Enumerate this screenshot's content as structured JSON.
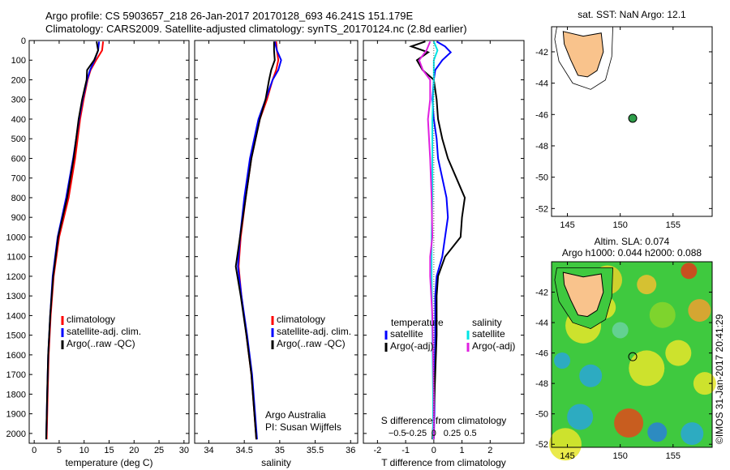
{
  "header": {
    "title_line1": "Argo profile: CS 5903657_218 26-Jan-2017 20170128_693 46.241S 151.179E",
    "title_line2": "Climatology: CARS2009. Satellite-adjusted climatology: synTS_20170124.nc (2.8d earlier)"
  },
  "side_stamp": "©IMOS 31-Jan-2017 20:41:29",
  "colors": {
    "climatology": "#ff0000",
    "satellite": "#0000ff",
    "argo": "#000000",
    "salinity_satellite": "#00e5e5",
    "salinity_argo": "#e020e0",
    "land": "#f9c38c",
    "float": "#2e9e4a"
  },
  "chart_data": [
    {
      "type": "line",
      "id": "temperature",
      "xlabel": "temperature (deg C)",
      "xlim": [
        -1,
        31
      ],
      "ylim": [
        2050,
        0
      ],
      "xticks": [
        0,
        5,
        10,
        15,
        20,
        25,
        30
      ],
      "yticks": [
        0,
        100,
        200,
        300,
        400,
        500,
        600,
        700,
        800,
        900,
        1000,
        1100,
        1200,
        1300,
        1400,
        1500,
        1600,
        1700,
        1800,
        1900,
        2000
      ],
      "legend": [
        "climatology",
        "satellite-adj. clim.",
        "Argo(..raw -QC)"
      ],
      "series": [
        {
          "name": "climatology",
          "color": "#ff0000",
          "depth": [
            5,
            50,
            100,
            150,
            200,
            300,
            400,
            600,
            800,
            1000,
            1200,
            1400,
            1600,
            1800,
            2030
          ],
          "values": [
            13.8,
            13.6,
            12.4,
            11.3,
            10.7,
            9.9,
            9.2,
            8.2,
            6.9,
            5.0,
            3.9,
            3.3,
            2.9,
            2.7,
            2.5
          ]
        },
        {
          "name": "satellite-adj. clim.",
          "color": "#0000ff",
          "depth": [
            5,
            50,
            100,
            150,
            200,
            300,
            400,
            600,
            800,
            1000,
            1200,
            1400,
            1600,
            1800,
            2030
          ],
          "values": [
            13.0,
            12.8,
            12.1,
            11.2,
            10.6,
            9.7,
            9.0,
            7.8,
            6.4,
            4.7,
            3.7,
            3.2,
            2.8,
            2.6,
            2.4
          ]
        },
        {
          "name": "Argo(..raw -QC)",
          "color": "#000000",
          "depth": [
            5,
            20,
            50,
            100,
            150,
            200,
            300,
            400,
            600,
            800,
            1000,
            1200,
            1400,
            1600,
            1800,
            2030
          ],
          "values": [
            12.5,
            12.6,
            12.8,
            12.0,
            10.6,
            10.5,
            9.6,
            8.9,
            7.9,
            6.6,
            4.8,
            3.8,
            3.2,
            2.8,
            2.6,
            2.4
          ]
        }
      ]
    },
    {
      "type": "line",
      "id": "salinity",
      "xlabel": "salinity",
      "xlim": [
        33.8,
        36.1
      ],
      "ylim": [
        2050,
        0
      ],
      "xticks": [
        34,
        34.5,
        35,
        35.5,
        36
      ],
      "legend": [
        "climatology",
        "satellite-adj. clim.",
        "Argo(..raw -QC)"
      ],
      "annotations": [
        "Argo Australia",
        "PI: Susan Wijffels"
      ],
      "series": [
        {
          "name": "climatology",
          "color": "#ff0000",
          "depth": [
            5,
            50,
            100,
            150,
            200,
            300,
            400,
            600,
            800,
            1000,
            1150,
            1300,
            1500,
            1700,
            2030
          ],
          "values": [
            34.95,
            34.96,
            34.98,
            34.95,
            34.9,
            34.82,
            34.72,
            34.6,
            34.52,
            34.45,
            34.42,
            34.46,
            34.53,
            34.6,
            34.67
          ]
        },
        {
          "name": "satellite-adj. clim.",
          "color": "#0000ff",
          "depth": [
            5,
            50,
            100,
            150,
            200,
            300,
            400,
            600,
            800,
            1000,
            1150,
            1300,
            1500,
            1700,
            2030
          ],
          "values": [
            34.93,
            34.96,
            35.02,
            34.98,
            34.9,
            34.8,
            34.7,
            34.58,
            34.5,
            34.44,
            34.41,
            34.46,
            34.54,
            34.61,
            34.68
          ]
        },
        {
          "name": "Argo(..raw -QC)",
          "color": "#000000",
          "depth": [
            5,
            50,
            100,
            150,
            200,
            300,
            400,
            600,
            800,
            1000,
            1150,
            1300,
            1500,
            1700,
            2030
          ],
          "values": [
            34.92,
            34.92,
            34.93,
            34.88,
            34.85,
            34.8,
            34.72,
            34.6,
            34.52,
            34.44,
            34.38,
            34.45,
            34.53,
            34.6,
            34.67
          ]
        }
      ]
    },
    {
      "type": "line",
      "id": "difference",
      "xlabel": "T difference from climatology",
      "xlabel_top": "S difference from climatology",
      "xlim": [
        -2.5,
        3.2
      ],
      "ylim": [
        2050,
        0
      ],
      "xticks": [
        -2,
        -1,
        0,
        1,
        2
      ],
      "xticks_top": [
        -0.5,
        -0.25,
        0,
        0.25,
        0.5
      ],
      "xticks_top_labels": [
        "−0.5",
        "−0.25",
        "0",
        "0.25",
        "0.5"
      ],
      "legend_titles": [
        "temperature",
        "salinity"
      ],
      "legend": [
        "satellite",
        "Argo(-adj)",
        "satellite",
        "Argo(-adj)"
      ],
      "series": [
        {
          "name": "temperature satellite",
          "color": "#0000ff",
          "depth": [
            5,
            30,
            60,
            100,
            150,
            200,
            300,
            400,
            500,
            600,
            700,
            800,
            900,
            1000,
            1100,
            1200,
            1300,
            1500,
            1700,
            1900,
            2030
          ],
          "values": [
            0.1,
            0.4,
            0.6,
            0.3,
            0.05,
            0.0,
            -0.05,
            0.0,
            0.1,
            0.15,
            0.3,
            0.45,
            0.5,
            0.4,
            0.3,
            0.1,
            0.05,
            0.05,
            0.03,
            0.02,
            0.0
          ]
        },
        {
          "name": "temperature Argo(-adj)",
          "color": "#000000",
          "depth": [
            5,
            30,
            60,
            100,
            150,
            200,
            300,
            400,
            500,
            600,
            700,
            800,
            900,
            1000,
            1100,
            1200,
            1300,
            1500,
            1700,
            1900,
            2030
          ],
          "values": [
            -0.3,
            -0.8,
            -0.2,
            -0.6,
            -0.4,
            0.0,
            0.1,
            0.15,
            0.3,
            0.5,
            0.8,
            1.1,
            1.0,
            0.95,
            0.4,
            0.15,
            0.1,
            0.1,
            0.05,
            0.0,
            -0.05
          ]
        },
        {
          "name": "salinity satellite",
          "color": "#00e5e5",
          "depth": [
            5,
            50,
            100,
            200,
            400,
            600,
            800,
            1000,
            1200,
            1500,
            1800,
            2030
          ],
          "values": [
            0.0,
            0.05,
            0.0,
            0.0,
            -0.02,
            -0.02,
            -0.02,
            -0.03,
            -0.03,
            -0.02,
            -0.01,
            -0.01
          ]
        },
        {
          "name": "salinity Argo(-adj)",
          "color": "#e020e0",
          "depth": [
            5,
            50,
            100,
            150,
            200,
            300,
            400,
            600,
            800,
            1000,
            1100,
            1200,
            1400,
            1600,
            1800,
            2030
          ],
          "values": [
            -0.05,
            -0.1,
            -0.2,
            -0.15,
            -0.05,
            -0.05,
            -0.08,
            -0.05,
            -0.03,
            -0.02,
            -0.05,
            -0.05,
            -0.02,
            -0.01,
            0.0,
            0.0
          ]
        }
      ]
    },
    {
      "type": "scatter",
      "id": "sst_map",
      "title": "sat. SST: NaN Argo: 12.1",
      "xlim": [
        143.5,
        158.7
      ],
      "ylim": [
        -52.5,
        -40.4
      ],
      "xticks": [
        145,
        150,
        155
      ],
      "yticks": [
        -42,
        -44,
        -46,
        -48,
        -50,
        -52
      ],
      "points": [
        {
          "lon": 151.179,
          "lat": -46.241
        }
      ]
    },
    {
      "type": "heatmap",
      "id": "sla_map",
      "title": "Altim. SLA: 0.074",
      "subtitle": "Argo h1000: 0.044 h2000: 0.088",
      "xlim": [
        143.5,
        158.7
      ],
      "ylim": [
        -52.2,
        -40.0
      ],
      "xticks": [
        145,
        150,
        155
      ],
      "yticks": [
        -42,
        -44,
        -46,
        -48,
        -50,
        -52
      ],
      "points": [
        {
          "lon": 151.179,
          "lat": -46.241
        }
      ]
    }
  ]
}
